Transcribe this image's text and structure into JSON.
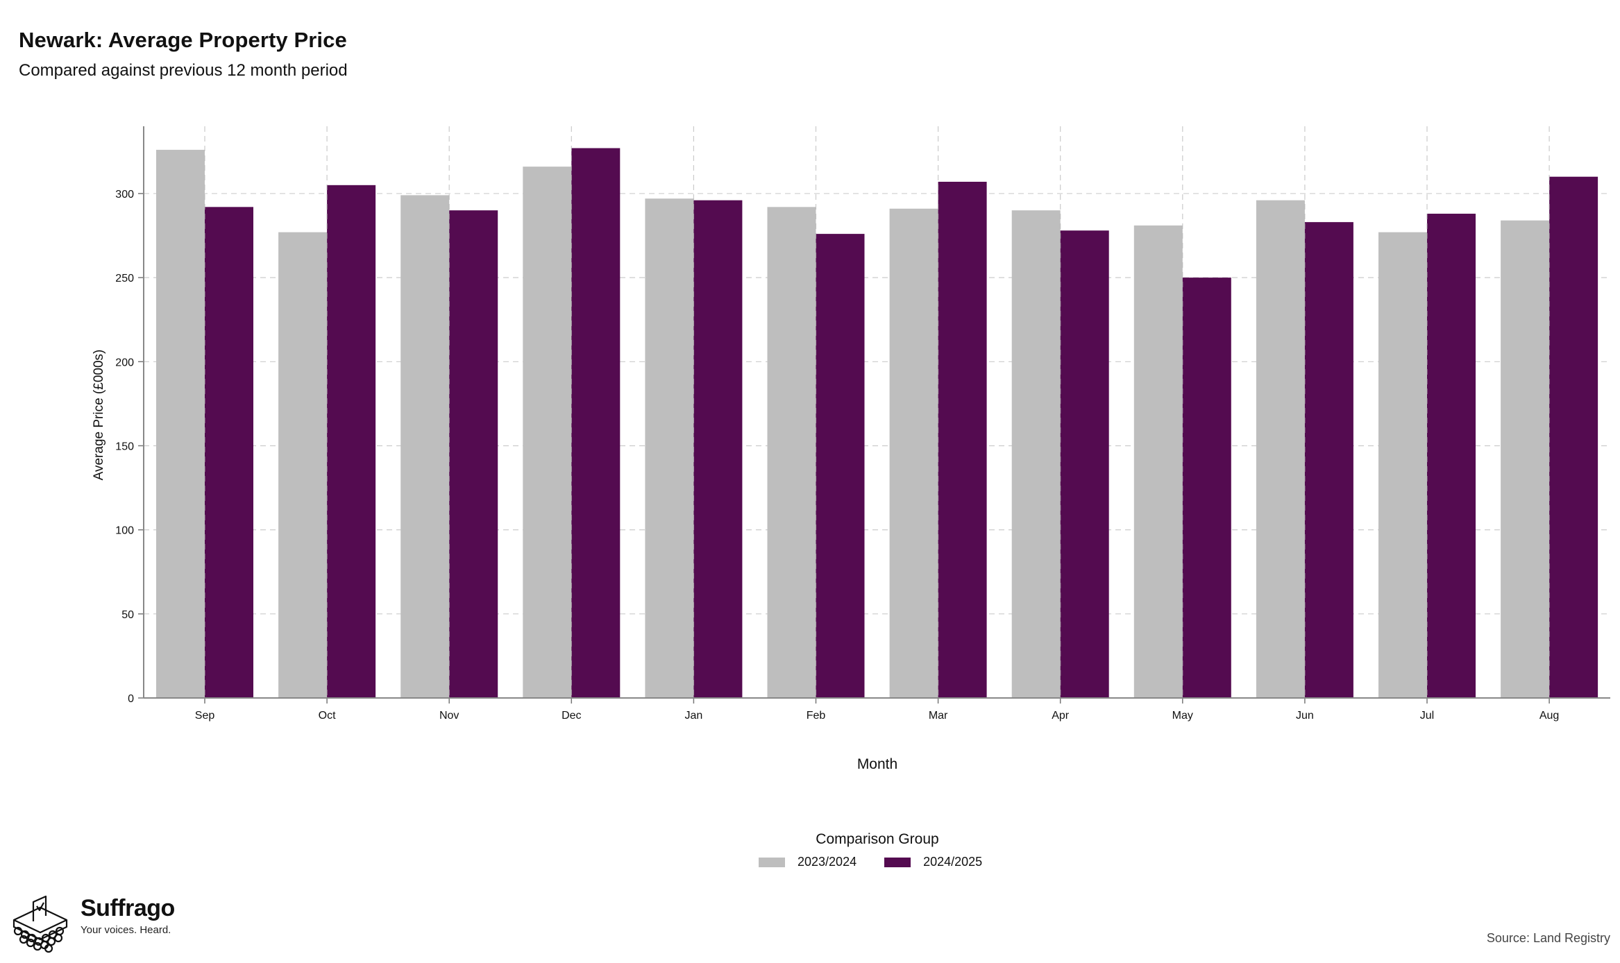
{
  "header": {
    "title": "Newark: Average Property Price",
    "subtitle": "Compared against previous 12 month period"
  },
  "legend": {
    "title": "Comparison Group",
    "items": [
      {
        "label": "2023/2024",
        "color": "#bebebe"
      },
      {
        "label": "2024/2025",
        "color": "#540b50"
      }
    ]
  },
  "footer": {
    "brand": "Suffrago",
    "tagline": "Your voices. Heard.",
    "source": "Source: Land Registry"
  },
  "chart_data": {
    "type": "bar",
    "title": "Newark: Average Property Price",
    "subtitle": "Compared against previous 12 month period",
    "xlabel": "Month",
    "ylabel": "Average Price (£000s)",
    "ylim": [
      0,
      340
    ],
    "yticks": [
      0,
      50,
      100,
      150,
      200,
      250,
      300
    ],
    "grid": true,
    "legend_position": "bottom",
    "categories": [
      "Sep",
      "Oct",
      "Nov",
      "Dec",
      "Jan",
      "Feb",
      "Mar",
      "Apr",
      "May",
      "Jun",
      "Jul",
      "Aug"
    ],
    "series": [
      {
        "name": "2023/2024",
        "color": "#bebebe",
        "values": [
          326,
          277,
          299,
          316,
          297,
          292,
          291,
          290,
          281,
          296,
          277,
          284
        ]
      },
      {
        "name": "2024/2025",
        "color": "#540b50",
        "values": [
          292,
          305,
          290,
          327,
          296,
          276,
          307,
          278,
          250,
          283,
          288,
          310
        ]
      }
    ]
  }
}
